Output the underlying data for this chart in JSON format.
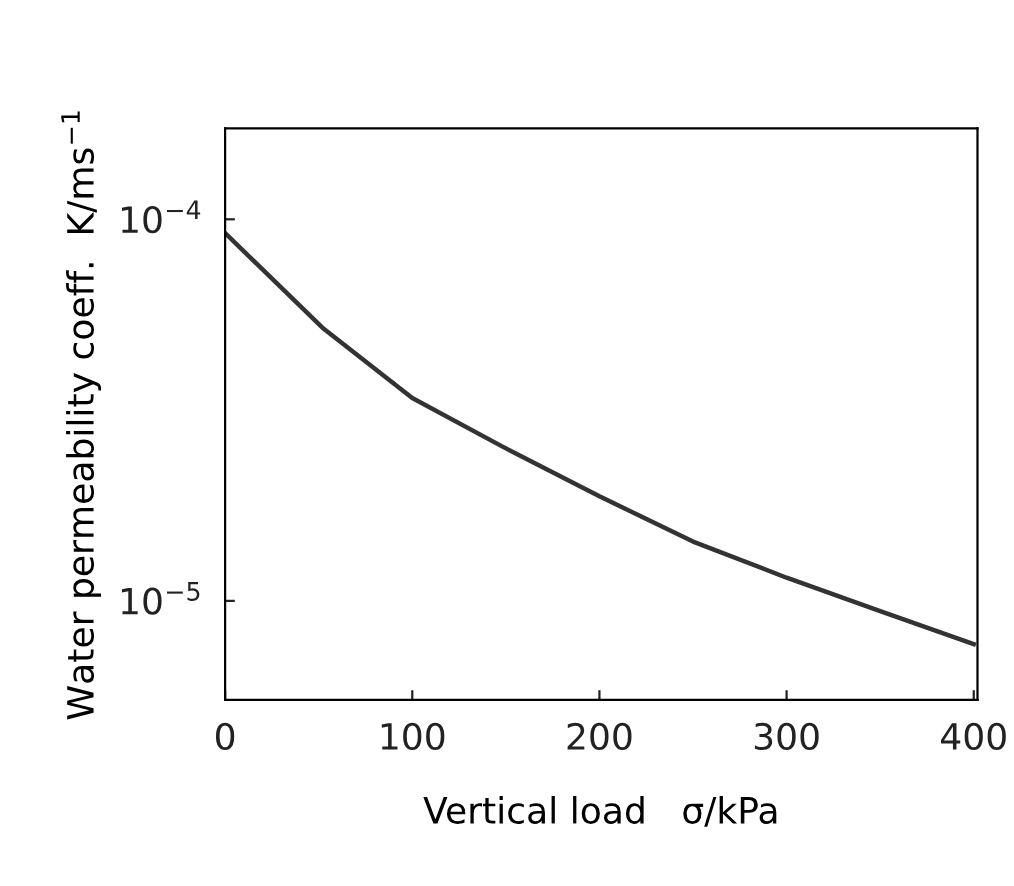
{
  "chart_data": {
    "type": "line",
    "xlabel": "Vertical load   σ/kPa",
    "ylabel": "Water permeability coeff.  K/ms$^{−1}$",
    "x": [
      0,
      52,
      100,
      148,
      200,
      250,
      300,
      350,
      400
    ],
    "series": [
      {
        "color": "#333333",
        "values": [
          9.2e-05,
          5.2e-05,
          3.4e-05,
          2.54e-05,
          1.88e-05,
          1.43e-05,
          1.15e-05,
          9.4e-06,
          7.7e-06
        ]
      }
    ],
    "log": "y",
    "xlim": [
      0,
      402
    ],
    "ylim": [
      5.5e-06,
      0.000173
    ],
    "xticks": [
      0,
      100,
      200,
      300,
      400
    ],
    "yticks": [
      {
        "value": 0.0001,
        "label": "10$^{−4}$"
      },
      {
        "value": 1e-05,
        "label": "10$^{−5}$"
      }
    ],
    "grid": false,
    "legend": false,
    "marker": "none",
    "line_style": "solid"
  }
}
